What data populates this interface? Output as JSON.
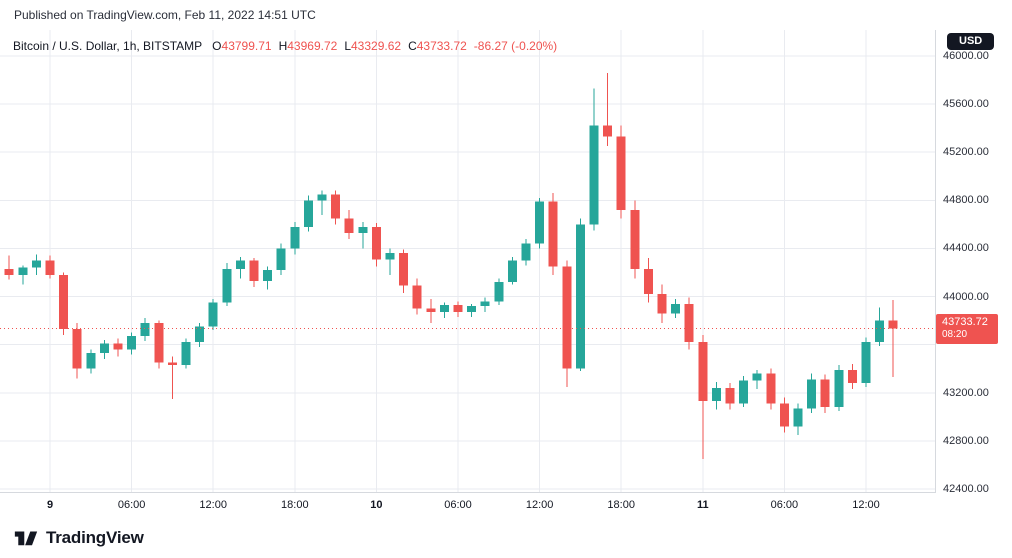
{
  "published": "Published on TradingView.com, Feb 11, 2022 14:51 UTC",
  "legend": {
    "symbol": "Bitcoin / U.S. Dollar, 1h, BITSTAMP",
    "ohlc": [
      {
        "label": "O",
        "value": "43799.71"
      },
      {
        "label": "H",
        "value": "43969.72"
      },
      {
        "label": "L",
        "value": "43329.62"
      },
      {
        "label": "C",
        "value": "43733.72"
      }
    ],
    "change": "-86.27 (-0.20%)"
  },
  "price_axis": {
    "currency": "USD",
    "labels": [
      "46000.00",
      "45600.00",
      "45200.00",
      "44800.00",
      "44400.00",
      "44000.00",
      "43600.00",
      "43200.00",
      "42800.00",
      "42400.00"
    ]
  },
  "price_line": {
    "value": "43733.72",
    "countdown": "08:20",
    "price": 43733.72
  },
  "footer": {
    "brand": "TradingView"
  },
  "colors": {
    "up": "#26a69a",
    "down": "#ef5350",
    "grid": "#e9ebf0",
    "price_line": "#ef5350",
    "tag_bg": "#ef5350",
    "badge_bg": "#131722",
    "text": "#131722"
  },
  "chart_data": {
    "type": "candlestick",
    "title": "Bitcoin / U.S. Dollar, 1h, BITSTAMP",
    "symbol": "BTC/USD",
    "exchange": "BITSTAMP",
    "interval": "1h",
    "ylabel": "USD",
    "xlabel": "",
    "grid": true,
    "legend_position": "top-left",
    "ylim": [
      42375,
      46216
    ],
    "ohlc_columns": [
      "open",
      "high",
      "low",
      "close"
    ],
    "x_ticks": [
      {
        "index": 3,
        "label": "9",
        "major": true
      },
      {
        "index": 9,
        "label": "06:00",
        "major": false
      },
      {
        "index": 15,
        "label": "12:00",
        "major": false
      },
      {
        "index": 21,
        "label": "18:00",
        "major": false
      },
      {
        "index": 27,
        "label": "10",
        "major": true
      },
      {
        "index": 33,
        "label": "06:00",
        "major": false
      },
      {
        "index": 39,
        "label": "12:00",
        "major": false
      },
      {
        "index": 45,
        "label": "18:00",
        "major": false
      },
      {
        "index": 51,
        "label": "11",
        "major": true
      },
      {
        "index": 57,
        "label": "06:00",
        "major": false
      },
      {
        "index": 63,
        "label": "12:00",
        "major": false
      }
    ],
    "candles": [
      [
        44230,
        44340,
        44140,
        44180
      ],
      [
        44180,
        44260,
        44100,
        44240
      ],
      [
        44240,
        44350,
        44180,
        44300
      ],
      [
        44300,
        44340,
        44150,
        44180
      ],
      [
        44180,
        44200,
        43680,
        43730
      ],
      [
        43730,
        43780,
        43320,
        43400
      ],
      [
        43400,
        43560,
        43360,
        43530
      ],
      [
        43530,
        43640,
        43480,
        43610
      ],
      [
        43610,
        43650,
        43500,
        43560
      ],
      [
        43560,
        43700,
        43520,
        43670
      ],
      [
        43670,
        43820,
        43630,
        43780
      ],
      [
        43780,
        43800,
        43400,
        43450
      ],
      [
        43450,
        43500,
        43150,
        43430
      ],
      [
        43430,
        43650,
        43400,
        43620
      ],
      [
        43620,
        43780,
        43580,
        43750
      ],
      [
        43750,
        43980,
        43720,
        43950
      ],
      [
        43950,
        44280,
        43920,
        44230
      ],
      [
        44230,
        44330,
        44150,
        44300
      ],
      [
        44300,
        44320,
        44080,
        44130
      ],
      [
        44130,
        44250,
        44060,
        44220
      ],
      [
        44220,
        44440,
        44180,
        44400
      ],
      [
        44400,
        44620,
        44350,
        44580
      ],
      [
        44580,
        44840,
        44540,
        44800
      ],
      [
        44800,
        44880,
        44680,
        44850
      ],
      [
        44850,
        44880,
        44600,
        44650
      ],
      [
        44650,
        44720,
        44480,
        44530
      ],
      [
        44530,
        44620,
        44400,
        44580
      ],
      [
        44580,
        44610,
        44250,
        44310
      ],
      [
        44310,
        44400,
        44180,
        44360
      ],
      [
        44360,
        44390,
        44030,
        44090
      ],
      [
        44090,
        44150,
        43850,
        43900
      ],
      [
        43900,
        43980,
        43780,
        43870
      ],
      [
        43870,
        43950,
        43820,
        43930
      ],
      [
        43930,
        43960,
        43830,
        43870
      ],
      [
        43870,
        43940,
        43830,
        43920
      ],
      [
        43920,
        43990,
        43870,
        43960
      ],
      [
        43960,
        44150,
        43930,
        44120
      ],
      [
        44120,
        44330,
        44100,
        44300
      ],
      [
        44300,
        44480,
        44260,
        44440
      ],
      [
        44440,
        44820,
        44400,
        44790
      ],
      [
        44790,
        44860,
        44180,
        44250
      ],
      [
        44250,
        44300,
        43250,
        43400
      ],
      [
        43400,
        44650,
        43380,
        44600
      ],
      [
        44600,
        45730,
        44550,
        45420
      ],
      [
        45420,
        45860,
        45250,
        45330
      ],
      [
        45330,
        45420,
        44650,
        44720
      ],
      [
        44720,
        44800,
        44150,
        44230
      ],
      [
        44230,
        44320,
        43950,
        44020
      ],
      [
        44020,
        44100,
        43780,
        43860
      ],
      [
        43860,
        43980,
        43820,
        43940
      ],
      [
        43940,
        43990,
        43560,
        43620
      ],
      [
        43620,
        43680,
        42650,
        43130
      ],
      [
        43130,
        43290,
        43060,
        43240
      ],
      [
        43240,
        43280,
        43060,
        43110
      ],
      [
        43110,
        43340,
        43080,
        43300
      ],
      [
        43300,
        43390,
        43230,
        43360
      ],
      [
        43360,
        43400,
        43060,
        43110
      ],
      [
        43110,
        43160,
        42870,
        42920
      ],
      [
        42920,
        43110,
        42850,
        43070
      ],
      [
        43070,
        43360,
        43030,
        43310
      ],
      [
        43310,
        43350,
        43030,
        43080
      ],
      [
        43080,
        43430,
        43050,
        43390
      ],
      [
        43390,
        43440,
        43230,
        43280
      ],
      [
        43280,
        43660,
        43250,
        43620
      ],
      [
        43620,
        43910,
        43590,
        43800
      ],
      [
        43799.71,
        43969.72,
        43329.62,
        43733.72
      ]
    ]
  }
}
